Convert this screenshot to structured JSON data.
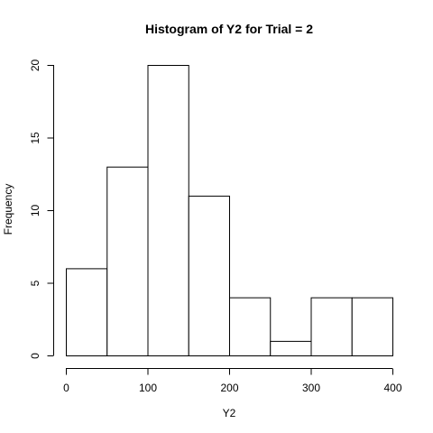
{
  "chart_data": {
    "type": "bar",
    "title": "Histogram of Y2 for Trial = 2",
    "xlabel": "Y2",
    "ylabel": "Frequency",
    "bins": [
      {
        "start": 0,
        "end": 50,
        "count": 6
      },
      {
        "start": 50,
        "end": 100,
        "count": 13
      },
      {
        "start": 100,
        "end": 150,
        "count": 20
      },
      {
        "start": 150,
        "end": 200,
        "count": 11
      },
      {
        "start": 200,
        "end": 250,
        "count": 4
      },
      {
        "start": 250,
        "end": 300,
        "count": 1
      },
      {
        "start": 300,
        "end": 350,
        "count": 4
      },
      {
        "start": 350,
        "end": 400,
        "count": 4
      }
    ],
    "xlim": [
      0,
      400
    ],
    "ylim": [
      0,
      20
    ],
    "x_ticks": [
      0,
      100,
      200,
      300,
      400
    ],
    "y_ticks": [
      0,
      5,
      10,
      15,
      20
    ],
    "grid": false,
    "bar_fill": "#ffffff",
    "bar_stroke": "#000000"
  }
}
